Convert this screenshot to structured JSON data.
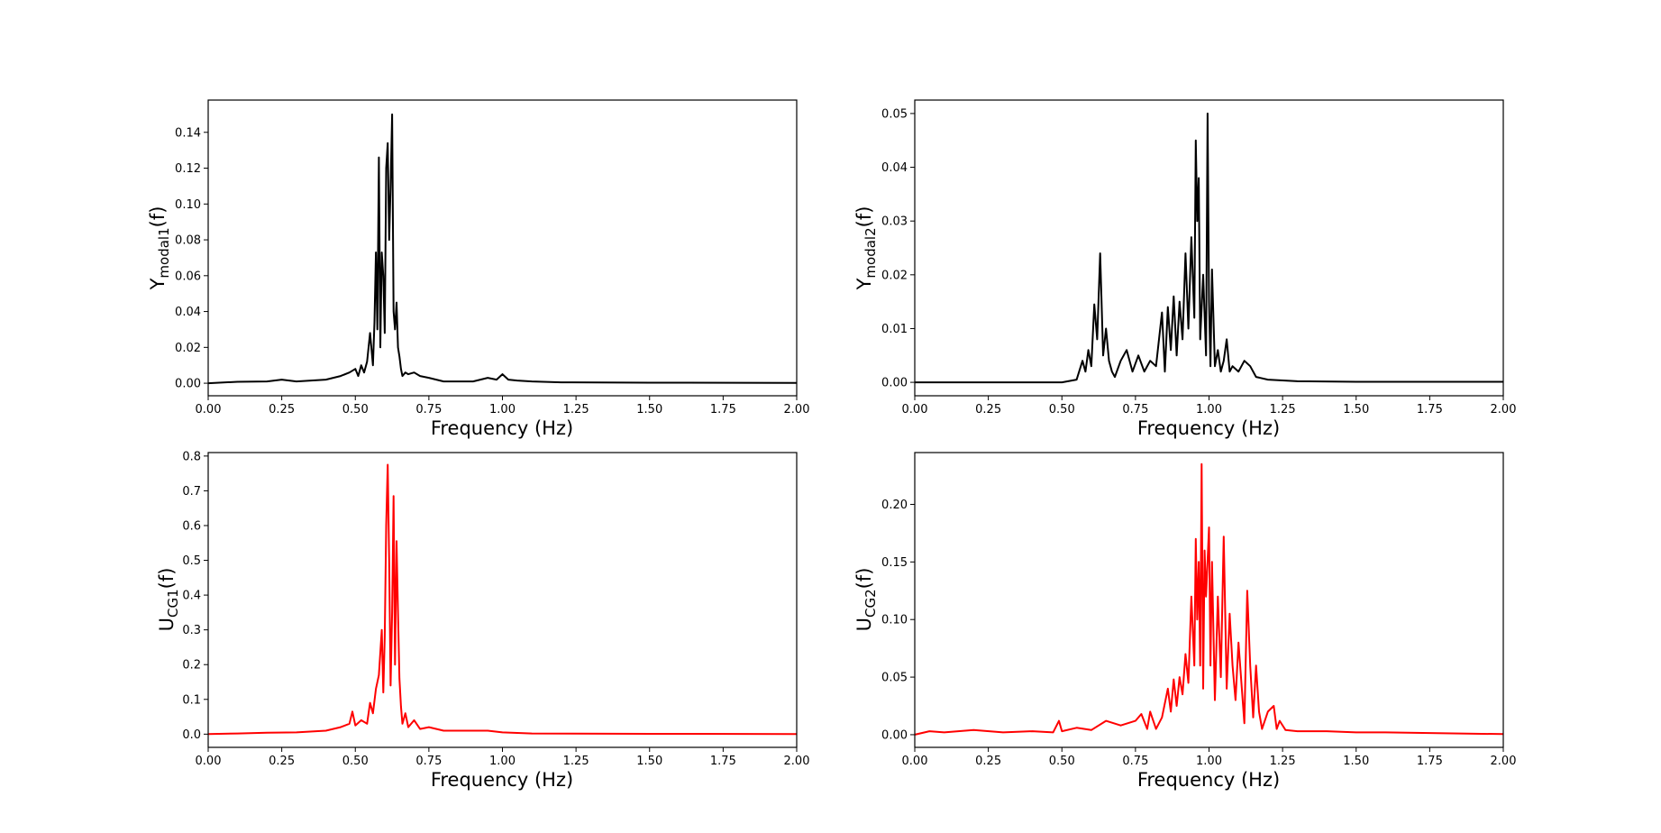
{
  "chart_data": [
    {
      "type": "line",
      "xlabel": "Frequency (Hz)",
      "ylabel": {
        "main": "Y",
        "sub": "modal1",
        "suffix": "(f)"
      },
      "xlim": [
        0,
        2.0
      ],
      "ylim": [
        -0.007,
        0.158
      ],
      "xticks": [
        "0.00",
        "0.25",
        "0.50",
        "0.75",
        "1.00",
        "1.25",
        "1.50",
        "1.75",
        "2.00"
      ],
      "yticks": [
        "0.00",
        "0.02",
        "0.04",
        "0.06",
        "0.08",
        "0.10",
        "0.12",
        "0.14"
      ],
      "color": "#000000",
      "series": [
        {
          "x": [
            0,
            0.1,
            0.2,
            0.25,
            0.3,
            0.4,
            0.45,
            0.48,
            0.5,
            0.51,
            0.52,
            0.53,
            0.54,
            0.55,
            0.56,
            0.565,
            0.57,
            0.575,
            0.58,
            0.585,
            0.59,
            0.595,
            0.6,
            0.605,
            0.61,
            0.615,
            0.62,
            0.625,
            0.63,
            0.635,
            0.64,
            0.645,
            0.65,
            0.655,
            0.66,
            0.67,
            0.68,
            0.7,
            0.72,
            0.75,
            0.8,
            0.9,
            0.95,
            0.98,
            1.0,
            1.02,
            1.05,
            1.1,
            1.2,
            1.5,
            2.0
          ],
          "y": [
            0,
            0.0008,
            0.001,
            0.002,
            0.001,
            0.002,
            0.004,
            0.006,
            0.008,
            0.004,
            0.01,
            0.006,
            0.012,
            0.028,
            0.01,
            0.034,
            0.073,
            0.03,
            0.126,
            0.02,
            0.073,
            0.06,
            0.028,
            0.12,
            0.134,
            0.08,
            0.11,
            0.15,
            0.04,
            0.03,
            0.045,
            0.02,
            0.015,
            0.008,
            0.004,
            0.006,
            0.005,
            0.006,
            0.004,
            0.003,
            0.001,
            0.001,
            0.003,
            0.002,
            0.005,
            0.002,
            0.0015,
            0.001,
            0.0005,
            0.0003,
            0.0002
          ]
        }
      ]
    },
    {
      "type": "line",
      "xlabel": "Frequency (Hz)",
      "ylabel": {
        "main": "Y",
        "sub": "modal2",
        "suffix": "(f)"
      },
      "xlim": [
        0,
        2.0
      ],
      "ylim": [
        -0.0025,
        0.0525
      ],
      "xticks": [
        "0.00",
        "0.25",
        "0.50",
        "0.75",
        "1.00",
        "1.25",
        "1.50",
        "1.75",
        "2.00"
      ],
      "yticks": [
        "0.00",
        "0.01",
        "0.02",
        "0.03",
        "0.04",
        "0.05"
      ],
      "color": "#000000",
      "series": [
        {
          "x": [
            0,
            0.5,
            0.55,
            0.57,
            0.58,
            0.59,
            0.6,
            0.61,
            0.62,
            0.63,
            0.64,
            0.65,
            0.66,
            0.67,
            0.68,
            0.7,
            0.72,
            0.74,
            0.76,
            0.78,
            0.8,
            0.82,
            0.84,
            0.85,
            0.86,
            0.87,
            0.88,
            0.89,
            0.9,
            0.91,
            0.92,
            0.93,
            0.94,
            0.95,
            0.955,
            0.96,
            0.965,
            0.97,
            0.98,
            0.99,
            0.995,
            1.0,
            1.005,
            1.01,
            1.02,
            1.03,
            1.04,
            1.05,
            1.06,
            1.07,
            1.08,
            1.1,
            1.12,
            1.14,
            1.16,
            1.2,
            1.3,
            1.5,
            2.0
          ],
          "y": [
            0,
            0,
            0.0005,
            0.004,
            0.002,
            0.006,
            0.003,
            0.0145,
            0.008,
            0.024,
            0.005,
            0.01,
            0.004,
            0.002,
            0.001,
            0.004,
            0.006,
            0.002,
            0.005,
            0.002,
            0.004,
            0.003,
            0.013,
            0.002,
            0.014,
            0.006,
            0.016,
            0.005,
            0.015,
            0.008,
            0.024,
            0.01,
            0.027,
            0.012,
            0.045,
            0.03,
            0.038,
            0.008,
            0.02,
            0.005,
            0.05,
            0.015,
            0.003,
            0.021,
            0.003,
            0.006,
            0.002,
            0.004,
            0.008,
            0.002,
            0.003,
            0.002,
            0.004,
            0.003,
            0.001,
            0.0005,
            0.0002,
            0.0001,
            0.0001
          ]
        }
      ]
    },
    {
      "type": "line",
      "xlabel": "Frequency (Hz)",
      "ylabel": {
        "main": "U",
        "sub": "CG1",
        "suffix": "(f)"
      },
      "xlim": [
        0,
        2.0
      ],
      "ylim": [
        -0.038,
        0.81
      ],
      "xticks": [
        "0.00",
        "0.25",
        "0.50",
        "0.75",
        "1.00",
        "1.25",
        "1.50",
        "1.75",
        "2.00"
      ],
      "yticks": [
        "0.0",
        "0.1",
        "0.2",
        "0.3",
        "0.4",
        "0.5",
        "0.6",
        "0.7",
        "0.8"
      ],
      "color": "#ff0000",
      "series": [
        {
          "x": [
            0,
            0.1,
            0.2,
            0.3,
            0.4,
            0.45,
            0.48,
            0.49,
            0.5,
            0.52,
            0.54,
            0.55,
            0.56,
            0.57,
            0.58,
            0.59,
            0.595,
            0.6,
            0.605,
            0.61,
            0.615,
            0.62,
            0.625,
            0.63,
            0.635,
            0.64,
            0.645,
            0.65,
            0.655,
            0.66,
            0.67,
            0.68,
            0.7,
            0.72,
            0.75,
            0.8,
            0.9,
            0.95,
            1.0,
            1.1,
            1.5,
            2.0
          ],
          "y": [
            0,
            0.002,
            0.004,
            0.005,
            0.01,
            0.02,
            0.03,
            0.065,
            0.025,
            0.04,
            0.03,
            0.09,
            0.06,
            0.13,
            0.17,
            0.3,
            0.12,
            0.28,
            0.6,
            0.775,
            0.5,
            0.14,
            0.35,
            0.685,
            0.2,
            0.555,
            0.35,
            0.16,
            0.08,
            0.03,
            0.06,
            0.02,
            0.04,
            0.015,
            0.02,
            0.01,
            0.01,
            0.01,
            0.005,
            0.002,
            0.001,
            0.0005
          ]
        }
      ]
    },
    {
      "type": "line",
      "xlabel": "Frequency (Hz)",
      "ylabel": {
        "main": "U",
        "sub": "CG2",
        "suffix": "(f)"
      },
      "xlim": [
        0,
        2.0
      ],
      "ylim": [
        -0.011,
        0.245
      ],
      "xticks": [
        "0.00",
        "0.25",
        "0.50",
        "0.75",
        "1.00",
        "1.25",
        "1.50",
        "1.75",
        "2.00"
      ],
      "yticks": [
        "0.00",
        "0.05",
        "0.10",
        "0.15",
        "0.20"
      ],
      "color": "#ff0000",
      "series": [
        {
          "x": [
            0,
            0.05,
            0.1,
            0.2,
            0.3,
            0.4,
            0.47,
            0.49,
            0.5,
            0.55,
            0.6,
            0.65,
            0.7,
            0.75,
            0.77,
            0.79,
            0.8,
            0.82,
            0.84,
            0.86,
            0.87,
            0.88,
            0.89,
            0.9,
            0.91,
            0.92,
            0.93,
            0.94,
            0.95,
            0.955,
            0.96,
            0.965,
            0.97,
            0.975,
            0.98,
            0.985,
            0.99,
            1.0,
            1.005,
            1.01,
            1.02,
            1.03,
            1.04,
            1.05,
            1.06,
            1.07,
            1.08,
            1.09,
            1.1,
            1.12,
            1.13,
            1.14,
            1.15,
            1.16,
            1.17,
            1.18,
            1.2,
            1.22,
            1.23,
            1.24,
            1.26,
            1.3,
            1.4,
            1.5,
            1.6,
            2.0
          ],
          "y": [
            0,
            0.003,
            0.002,
            0.004,
            0.002,
            0.003,
            0.002,
            0.012,
            0.003,
            0.006,
            0.004,
            0.012,
            0.008,
            0.012,
            0.018,
            0.005,
            0.02,
            0.005,
            0.015,
            0.04,
            0.02,
            0.048,
            0.025,
            0.05,
            0.035,
            0.07,
            0.045,
            0.12,
            0.06,
            0.17,
            0.1,
            0.15,
            0.06,
            0.235,
            0.04,
            0.16,
            0.12,
            0.18,
            0.06,
            0.15,
            0.03,
            0.12,
            0.05,
            0.172,
            0.04,
            0.105,
            0.06,
            0.03,
            0.08,
            0.01,
            0.125,
            0.06,
            0.015,
            0.06,
            0.02,
            0.005,
            0.02,
            0.025,
            0.005,
            0.012,
            0.004,
            0.003,
            0.003,
            0.002,
            0.002,
            0.0005
          ]
        }
      ]
    }
  ]
}
